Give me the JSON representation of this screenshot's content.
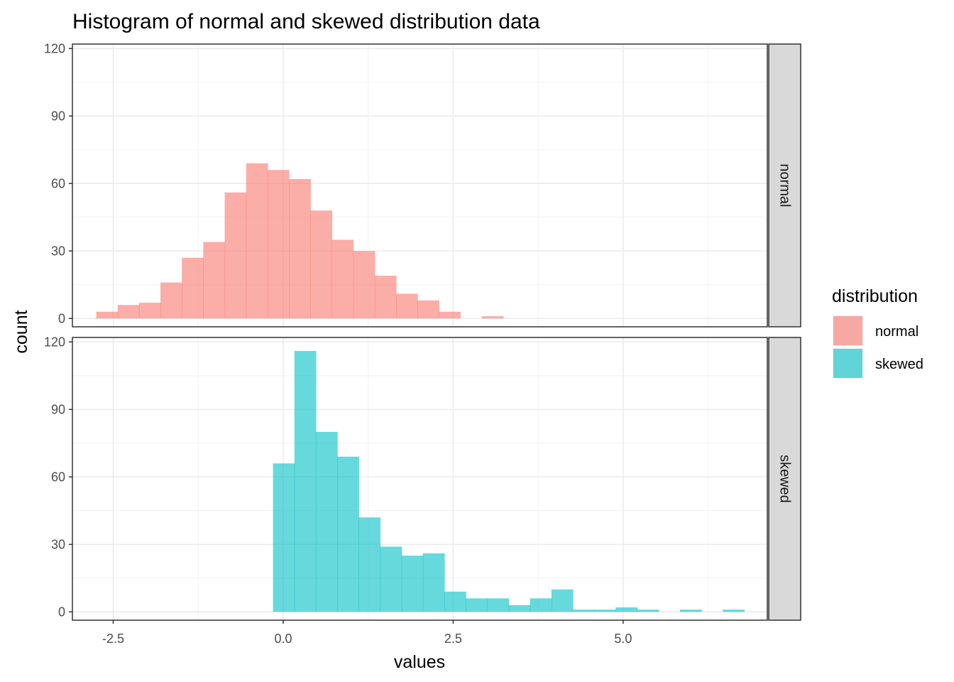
{
  "chart_data": {
    "type": "bar",
    "title": "Histogram of normal and skewed distribution data",
    "xlabel": "values",
    "ylabel": "count",
    "xlim": [
      -3.1,
      7.12
    ],
    "ylim": [
      -3.7,
      122
    ],
    "x_ticks": [
      -2.5,
      0.0,
      2.5,
      5.0
    ],
    "x_tick_labels": [
      "-2.5",
      "0.0",
      "2.5",
      "5.0"
    ],
    "y_ticks": [
      0,
      30,
      60,
      90,
      120
    ],
    "y_tick_labels": [
      "0",
      "30",
      "60",
      "90",
      "120"
    ],
    "bin_width": 0.315,
    "grid": true,
    "facet_direction": "rows",
    "legend": {
      "title": "distribution",
      "position": "right",
      "entries": [
        "normal",
        "skewed"
      ]
    },
    "series": [
      {
        "name": "normal",
        "color": "#F8766D",
        "bin_starts": [
          -2.75,
          -2.435,
          -2.12,
          -1.805,
          -1.49,
          -1.175,
          -0.86,
          -0.545,
          -0.23,
          0.085,
          0.4,
          0.715,
          1.03,
          1.345,
          1.66,
          1.975,
          2.29,
          2.605,
          2.92
        ],
        "counts": [
          3,
          6,
          7,
          16,
          27,
          34,
          56,
          69,
          66,
          62,
          48,
          35,
          30,
          19,
          11,
          8,
          3,
          0,
          1
        ]
      },
      {
        "name": "skewed",
        "color": "#00BFC4",
        "bin_starts": [
          -0.15,
          0.165,
          0.48,
          0.795,
          1.11,
          1.425,
          1.74,
          2.055,
          2.37,
          2.685,
          3.0,
          3.315,
          3.63,
          3.945,
          4.26,
          4.575,
          4.89,
          5.205,
          5.52,
          5.835,
          6.15,
          6.465
        ],
        "counts": [
          66,
          116,
          80,
          69,
          42,
          29,
          25,
          26,
          9,
          6,
          6,
          3,
          6,
          10,
          1,
          1,
          2,
          1,
          0,
          1,
          0,
          1
        ]
      }
    ]
  }
}
